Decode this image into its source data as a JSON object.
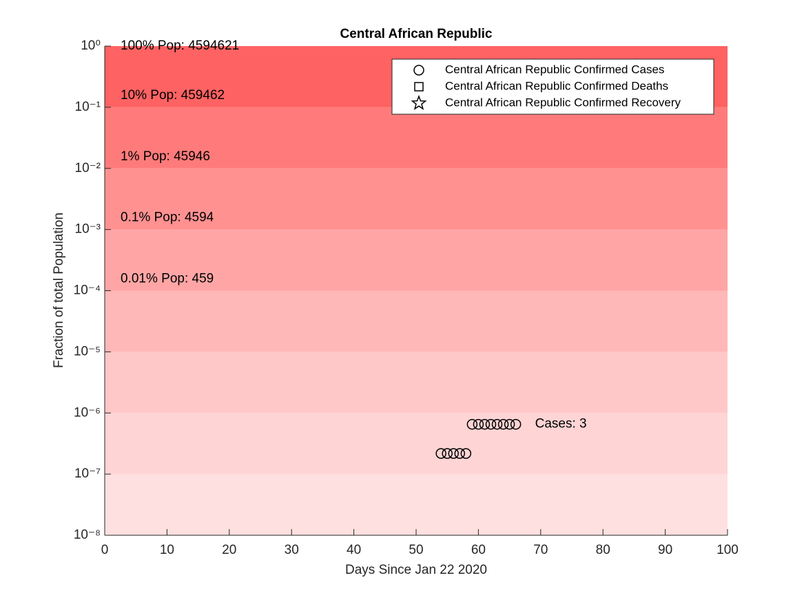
{
  "chart_data": {
    "type": "scatter",
    "title": "Central African Republic",
    "xlabel": "Days Since Jan 22 2020",
    "ylabel": "Fraction of total Population",
    "xlim": [
      0,
      100
    ],
    "xticks": [
      0,
      10,
      20,
      30,
      40,
      50,
      60,
      70,
      80,
      90,
      100
    ],
    "ylim": [
      1e-08,
      1
    ],
    "yscale": "log",
    "yticks": [
      {
        "value": 1e-08,
        "label": "10⁻⁸"
      },
      {
        "value": 1e-07,
        "label": "10⁻⁷"
      },
      {
        "value": 1e-06,
        "label": "10⁻⁶"
      },
      {
        "value": 1e-05,
        "label": "10⁻⁵"
      },
      {
        "value": 0.0001,
        "label": "10⁻⁴"
      },
      {
        "value": 0.001,
        "label": "10⁻³"
      },
      {
        "value": 0.01,
        "label": "10⁻²"
      },
      {
        "value": 0.1,
        "label": "10⁻¹"
      },
      {
        "value": 1,
        "label": "10⁰"
      }
    ],
    "band_colors": [
      "#ffe0e0",
      "#ffd4d4",
      "#ffc8c8",
      "#ffb8b8",
      "#ffa5a5",
      "#ff9191",
      "#ff7b7b",
      "#ff6262"
    ],
    "population_labels": [
      "100% Pop: 4594621",
      "10% Pop: 459462",
      "1% Pop: 45946",
      "0.1% Pop: 4594",
      "0.01% Pop: 459"
    ],
    "end_label": "Cases: 3",
    "legend": "northeast",
    "series": [
      {
        "name": "Central African Republic Confirmed Cases",
        "marker": "circle",
        "color": "#000000",
        "x": [
          54,
          55,
          56,
          57,
          58,
          59,
          60,
          61,
          62,
          63,
          64,
          65,
          66
        ],
        "values": [
          2.1764e-07,
          2.1764e-07,
          2.1764e-07,
          2.1764e-07,
          2.1764e-07,
          6.529e-07,
          6.529e-07,
          6.529e-07,
          6.529e-07,
          6.529e-07,
          6.529e-07,
          6.529e-07,
          6.529e-07
        ]
      },
      {
        "name": "Central African Republic Confirmed Deaths",
        "marker": "square",
        "color": "#000000",
        "x": [],
        "values": []
      },
      {
        "name": "Central African Republic Confirmed Recovery",
        "marker": "star",
        "color": "#000000",
        "x": [],
        "values": []
      }
    ]
  }
}
